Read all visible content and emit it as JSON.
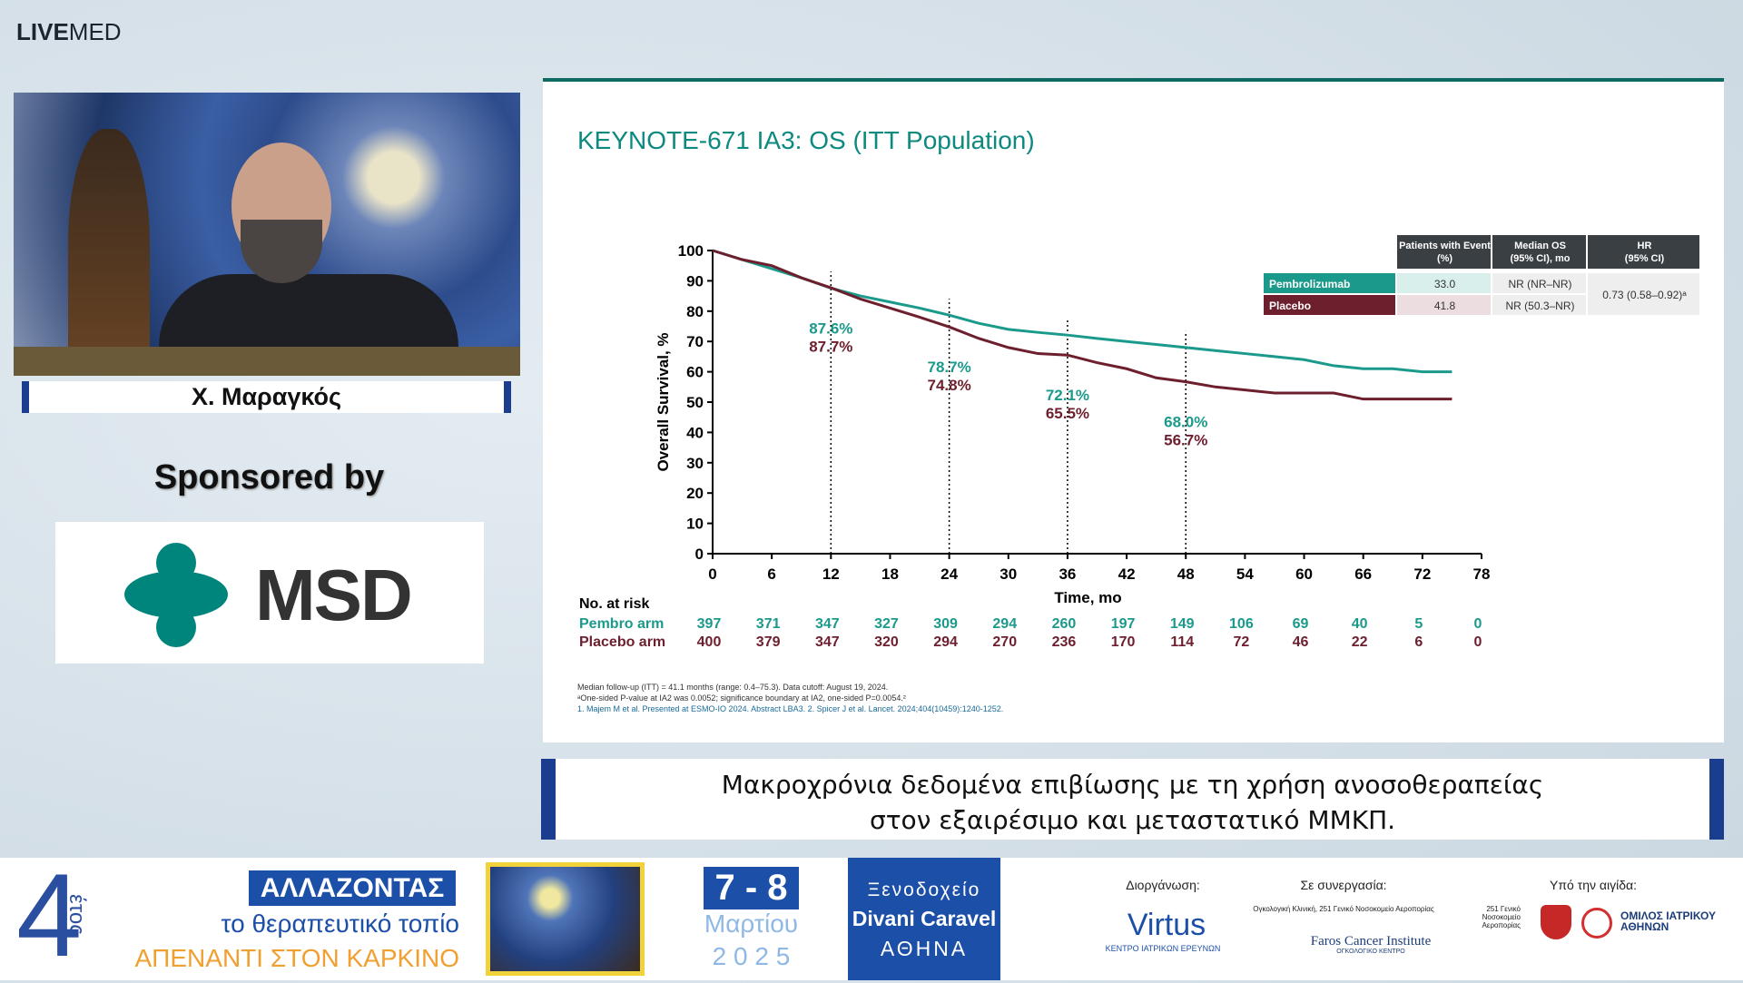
{
  "header": {
    "logo_parts": [
      "LIVE",
      "MED"
    ]
  },
  "speaker": {
    "name": "Χ. Μαραγκός"
  },
  "sponsor": {
    "label": "Sponsored by",
    "name": "MSD"
  },
  "slide": {
    "title": "KEYNOTE-671 IA3: OS (ITT Population)",
    "footnotes": [
      "Median follow-up (ITT) = 41.1 months (range: 0.4–75.3). Data cutoff: August 19, 2024.",
      "ᵃOne-sided P-value at IA2 was 0.0052; significance boundary at IA2, one-sided P=0.0054.²",
      "1. Majem M et al. Presented at ESMO-IO 2024. Abstract LBA3. 2. Spicer J et al. Lancet. 2024;404(10459):1240-1252."
    ]
  },
  "chart_data": {
    "type": "line",
    "y_label": "Overall Survival, %",
    "x_label": "Time, mo",
    "x": [
      0,
      3,
      6,
      9,
      12,
      15,
      18,
      21,
      24,
      27,
      30,
      33,
      36,
      39,
      42,
      45,
      48,
      51,
      54,
      57,
      60,
      63,
      66,
      69,
      72,
      75
    ],
    "series": [
      {
        "name": "Pembrolizumab",
        "color": "#1b9a8c",
        "values": [
          100,
          97,
          94,
          91,
          87.6,
          85,
          83,
          81,
          78.7,
          76,
          74,
          73,
          72.1,
          71,
          70,
          69,
          68,
          67,
          66,
          65,
          64,
          62,
          61,
          61,
          60,
          60
        ],
        "landmark_values": [
          87.6,
          78.7,
          72.1,
          68.0
        ],
        "landmark_labels": [
          "87.6%",
          "78.7%",
          "72.1%",
          "68.0%"
        ]
      },
      {
        "name": "Placebo",
        "color": "#6e1f2e",
        "values": [
          100,
          97,
          95,
          91,
          87.7,
          84,
          81,
          78,
          74.8,
          71,
          68,
          66,
          65.5,
          63,
          61,
          58,
          56.7,
          55,
          54,
          53,
          53,
          53,
          51,
          51,
          51,
          51
        ],
        "landmark_values": [
          87.7,
          74.8,
          65.5,
          56.7
        ],
        "landmark_labels": [
          "87.7%",
          "74.8%",
          "65.5%",
          "56.7%"
        ]
      }
    ],
    "landmarks": {
      "x": [
        12,
        24,
        36,
        48
      ]
    },
    "xlim": [
      0,
      78
    ],
    "xticks": [
      0,
      6,
      12,
      18,
      24,
      30,
      36,
      42,
      48,
      54,
      60,
      66,
      72,
      78
    ],
    "ylim": [
      0,
      100
    ],
    "yticks": [
      0,
      10,
      20,
      30,
      40,
      50,
      60,
      70,
      80,
      90,
      100
    ],
    "grid": false,
    "summary_table": {
      "headers": [
        [
          "Patients with Event",
          "(%)"
        ],
        [
          "Median OS",
          "(95% CI), mo"
        ],
        [
          "HR",
          "(95% CI)"
        ]
      ],
      "rows": [
        {
          "events": "33.0",
          "median_os": "NR (NR–NR)"
        },
        {
          "events": "41.8",
          "median_os": "NR (50.3–NR)"
        }
      ],
      "hr": "0.73 (0.58–0.92)ᵃ"
    },
    "risk_table": {
      "title": "No. at risk",
      "rows": [
        {
          "label": "Pembro arm",
          "values": [
            397,
            371,
            347,
            327,
            309,
            294,
            260,
            197,
            149,
            106,
            69,
            40,
            5,
            0
          ]
        },
        {
          "label": "Placebo arm",
          "values": [
            400,
            379,
            347,
            320,
            294,
            270,
            236,
            170,
            114,
            72,
            46,
            22,
            6,
            0
          ]
        }
      ]
    }
  },
  "caption": {
    "lines": [
      "Μακροχρόνια δεδομένα επιβίωσης με τη χρήση ανοσοθεραπείας",
      "στον εξαιρέσιμο και μεταστατικό ΜΜΚΠ."
    ]
  },
  "banner": {
    "edition": "4",
    "edition_word": "έτος",
    "title_box": "ΑΛΛΑΖΟΝΤΑΣ",
    "title_line2": "το θεραπευτικό τοπίο",
    "title_line3": "ΑΠΕΝΑΝΤΙ ΣΤΟΝ ΚΑΡΚΙΝΟ",
    "days": "7 - 8",
    "month": "Μαρτίου",
    "year": "2 0 2 5",
    "venue": [
      "Ξενοδοχείο",
      "Divani Caravel",
      "ΑΘΗΝΑ"
    ],
    "organizer_label": "Διοργάνωση:",
    "organizer_name": "Virtus",
    "organizer_sub": "ΚΕΝΤΡΟ ΙΑΤΡΙΚΩΝ ΕΡΕΥΝΩΝ",
    "partner_label": "Σε συνεργασία:",
    "partner_clinic": "Ογκολογική Κλινική, 251 Γενικό Νοσοκομείο Αεροπορίας",
    "partner_name": "Faros Cancer Institute",
    "partner_sub": "ΟΓΚΟΛΟΓΙΚΟ ΚΕΝΤΡΟ",
    "auspices_label": "Υπό την αιγίδα:",
    "auspices_hospital": "251 Γενικό Νοσοκομείο Αεροπορίας",
    "auspices_group": "ΟΜΙΛΟΣ ΙΑΤΡΙΚΟΥ ΑΘΗΝΩΝ"
  }
}
